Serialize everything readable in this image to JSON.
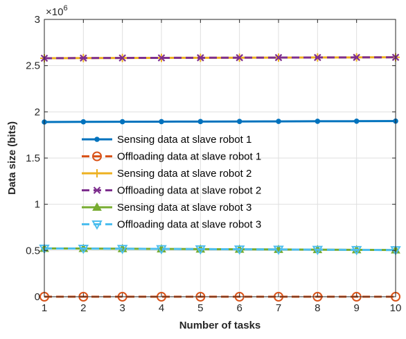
{
  "chart_data": {
    "type": "line",
    "xlabel": "Number of tasks",
    "ylabel": "Data size (bits)",
    "y_multiplier_label": "×10",
    "y_multiplier_exponent": "6",
    "xlim": [
      1,
      10
    ],
    "ylim": [
      0,
      3
    ],
    "x_ticks": [
      "1",
      "2",
      "3",
      "4",
      "5",
      "6",
      "7",
      "8",
      "9",
      "10"
    ],
    "y_ticks": [
      "0",
      "0.5",
      "1",
      "1.5",
      "2",
      "2.5",
      "3"
    ],
    "grid": true,
    "legend_position": "center-left",
    "x": [
      1,
      2,
      3,
      4,
      5,
      6,
      7,
      8,
      9,
      10
    ],
    "series": [
      {
        "name": "Sensing data at slave robot 1",
        "marker": "dot",
        "dash": "solid",
        "color": "#0072BD",
        "values": [
          1.89,
          1.892,
          1.893,
          1.894,
          1.895,
          1.896,
          1.897,
          1.898,
          1.899,
          1.9
        ]
      },
      {
        "name": "Offloading data at slave robot 1",
        "marker": "circle",
        "dash": "dashed",
        "color": "#D95319",
        "values": [
          0,
          0,
          0,
          0,
          0,
          0,
          0,
          0,
          0,
          0
        ]
      },
      {
        "name": "Sensing data at slave robot 2",
        "marker": "plus",
        "dash": "solid",
        "color": "#EDB120",
        "values": [
          2.58,
          2.582,
          2.583,
          2.584,
          2.585,
          2.586,
          2.587,
          2.588,
          2.589,
          2.59
        ]
      },
      {
        "name": "Offloading data at slave robot 2",
        "marker": "cross",
        "dash": "dashed",
        "color": "#7E2F8E",
        "values": [
          2.58,
          2.582,
          2.583,
          2.584,
          2.585,
          2.586,
          2.587,
          2.588,
          2.589,
          2.59
        ]
      },
      {
        "name": "Sensing data at slave robot 3",
        "marker": "triangle-up",
        "dash": "solid",
        "color": "#77AC30",
        "values": [
          0.522,
          0.521,
          0.519,
          0.517,
          0.515,
          0.513,
          0.511,
          0.509,
          0.507,
          0.505
        ]
      },
      {
        "name": "Offloading data at slave robot 3",
        "marker": "triangle-down",
        "dash": "dashed",
        "color": "#4DBEEE",
        "values": [
          0.522,
          0.521,
          0.519,
          0.517,
          0.515,
          0.513,
          0.511,
          0.509,
          0.507,
          0.505
        ]
      }
    ]
  }
}
